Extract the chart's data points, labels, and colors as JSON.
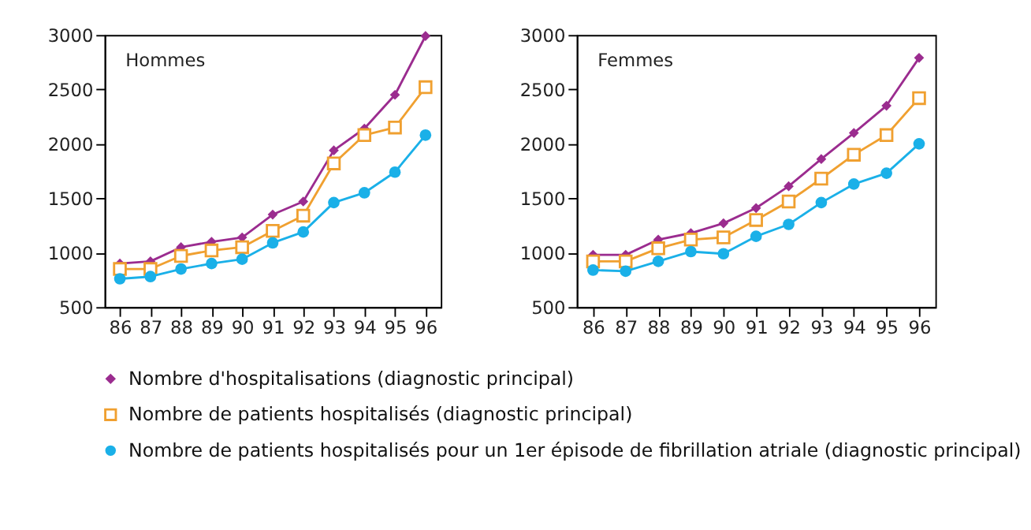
{
  "chart_data": [
    {
      "type": "line",
      "title": "Hommes",
      "categories": [
        "86",
        "87",
        "88",
        "89",
        "90",
        "91",
        "92",
        "93",
        "94",
        "95",
        "96"
      ],
      "ylim": [
        500,
        3000
      ],
      "yticks": [
        500,
        1000,
        1500,
        2000,
        2500,
        3000
      ],
      "grid": false,
      "series": [
        {
          "color": "#9b2c8f",
          "marker": "diamond",
          "values": [
            900,
            920,
            1050,
            1100,
            1140,
            1350,
            1470,
            1940,
            2140,
            2450,
            2990
          ]
        },
        {
          "color": "#f0a030",
          "marker": "square",
          "values": [
            850,
            850,
            970,
            1020,
            1050,
            1200,
            1340,
            1820,
            2080,
            2150,
            2520
          ]
        },
        {
          "color": "#1ab0e8",
          "marker": "circle",
          "values": [
            760,
            780,
            850,
            900,
            940,
            1090,
            1190,
            1460,
            1550,
            1740,
            2080
          ]
        }
      ]
    },
    {
      "type": "line",
      "title": "Femmes",
      "categories": [
        "86",
        "87",
        "88",
        "89",
        "90",
        "91",
        "92",
        "93",
        "94",
        "95",
        "96"
      ],
      "ylim": [
        500,
        3000
      ],
      "yticks": [
        500,
        1000,
        1500,
        2000,
        2500,
        3000
      ],
      "grid": false,
      "legend": "bottom",
      "series": [
        {
          "name": "Nombre d'hospitalisations (diagnostic principal)",
          "color": "#9b2c8f",
          "marker": "diamond",
          "values": [
            980,
            980,
            1120,
            1180,
            1270,
            1410,
            1610,
            1860,
            2100,
            2350,
            2790
          ]
        },
        {
          "name": "Nombre de patients hospitalisés (diagnostic principal)",
          "color": "#f0a030",
          "marker": "square",
          "values": [
            920,
            920,
            1040,
            1120,
            1140,
            1300,
            1470,
            1680,
            1900,
            2080,
            2420
          ]
        },
        {
          "name": "Nombre de patients hospitalisés pour un 1er épisode de fibrillation atriale (diagnostic principal)",
          "color": "#1ab0e8",
          "marker": "circle",
          "values": [
            840,
            830,
            920,
            1010,
            990,
            1150,
            1260,
            1460,
            1630,
            1730,
            2000
          ]
        }
      ]
    }
  ]
}
